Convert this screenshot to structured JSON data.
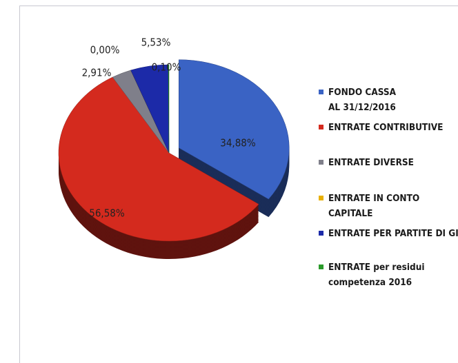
{
  "chart_data": {
    "type": "pie",
    "categories": [
      "FONDO CASSA AL 31/12/2016",
      "ENTRATE CONTRIBUTIVE",
      "ENTRATE DIVERSE",
      "ENTRATE IN CONTO CAPITALE",
      "ENTRATE PER PARTITE DI GIRO",
      "ENTRATE per residui competenza 2016"
    ],
    "values": [
      34.88,
      56.58,
      2.91,
      0.0,
      5.53,
      0.1
    ],
    "value_labels": [
      "34,88%",
      "56,58%",
      "2,91%",
      "0,00%",
      "5,53%",
      "0,10%"
    ],
    "colors": [
      "#3a63c4",
      "#d42a1e",
      "#7f7f8a",
      "#e8b000",
      "#1c2aa8",
      "#2a9a2a"
    ],
    "legend": "right"
  }
}
